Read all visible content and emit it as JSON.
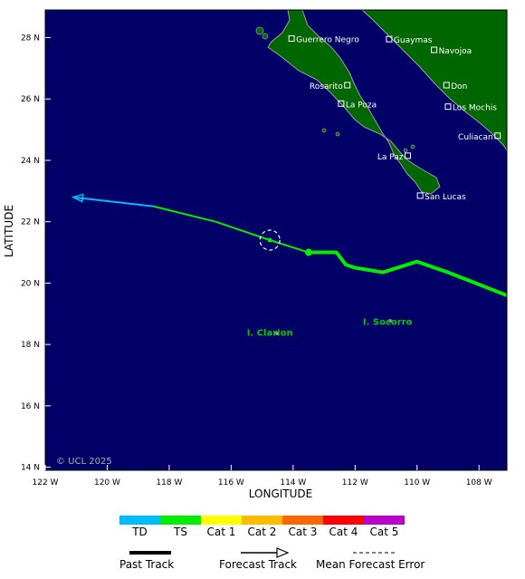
{
  "axes": {
    "xlabel": "LONGITUDE",
    "ylabel": "LATITUDE",
    "lon_range": [
      -122,
      -107.1
    ],
    "lat_range": [
      13.9,
      28.9
    ],
    "x_ticks": [
      "122 W",
      "120 W",
      "118 W",
      "116 W",
      "114 W",
      "112 W",
      "110 W",
      "108 W"
    ],
    "y_ticks": [
      "28 N",
      "26 N",
      "24 N",
      "22 N",
      "20 N",
      "18 N",
      "16 N",
      "14 N"
    ]
  },
  "copyright": "© UCL 2025",
  "places": [
    {
      "name": "Guerrero Negro",
      "lon": -114.05,
      "lat": 27.97,
      "marker": true
    },
    {
      "name": "Guaymas",
      "lon": -110.9,
      "lat": 27.95,
      "marker": true
    },
    {
      "name": "Navojoa",
      "lon": -109.45,
      "lat": 27.6,
      "marker": true
    },
    {
      "name": "Rosarito",
      "lon": -112.25,
      "lat": 26.45,
      "marker": true
    },
    {
      "name": "Don",
      "lon": -109.05,
      "lat": 26.45,
      "marker": true
    },
    {
      "name": "La Poza",
      "lon": -112.45,
      "lat": 25.85,
      "marker": true
    },
    {
      "name": "Los Mochis",
      "lon": -109.0,
      "lat": 25.75,
      "marker": true
    },
    {
      "name": "Culiacan",
      "lon": -107.4,
      "lat": 24.8,
      "marker": true
    },
    {
      "name": "La Paz",
      "lon": -110.3,
      "lat": 24.15,
      "marker": true
    },
    {
      "name": "San Lucas",
      "lon": -109.9,
      "lat": 22.85,
      "marker": true
    },
    {
      "name": "I. Socorro",
      "lon": -110.95,
      "lat": 18.75,
      "marker": false
    },
    {
      "name": "I. Clarion",
      "lon": -114.75,
      "lat": 18.4,
      "marker": false
    }
  ],
  "storm": {
    "past_track": [
      [
        -107.1,
        19.6
      ],
      [
        -109.0,
        20.35
      ],
      [
        -110.0,
        20.7
      ],
      [
        -111.1,
        20.35
      ],
      [
        -112.0,
        20.5
      ],
      [
        -112.3,
        20.6
      ],
      [
        -112.6,
        21.0
      ],
      [
        -113.5,
        21.0
      ]
    ],
    "current_position": [
      -113.5,
      21.0
    ],
    "forecast_track": [
      [
        -113.5,
        21.0
      ],
      [
        -114.75,
        21.4
      ],
      [
        -116.5,
        22.0
      ],
      [
        -118.5,
        22.5
      ],
      [
        -121.1,
        22.8
      ]
    ],
    "forecast_point": [
      -114.75,
      21.4
    ],
    "forecast_colors": [
      "TS",
      "TS",
      "TS",
      "TD"
    ]
  },
  "colors": {
    "ocean": "#000066",
    "land": "#006600",
    "coast": "#9fa0a3",
    "place_text": "#ffffff",
    "island_text": "#00cc00",
    "TD": "#00bbff",
    "TS": "#00ee00",
    "Cat 1": "#ffff00",
    "Cat 2": "#ffbb00",
    "Cat 3": "#ff6600",
    "Cat 4": "#ff0000",
    "Cat 5": "#bb00cc"
  },
  "legend": {
    "categories": [
      "TD",
      "TS",
      "Cat 1",
      "Cat 2",
      "Cat 3",
      "Cat 4",
      "Cat 5"
    ],
    "past_track_label": "Past Track",
    "forecast_track_label": "Forecast Track",
    "error_label": "Mean Forecast Error"
  }
}
